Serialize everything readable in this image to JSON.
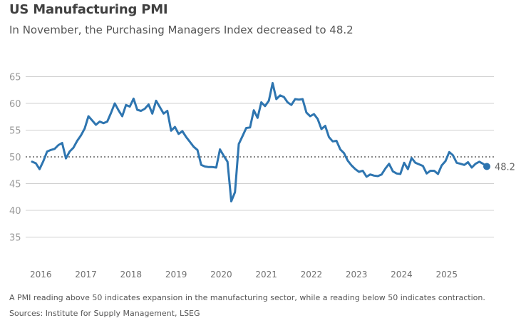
{
  "header": {
    "title": "US Manufacturing PMI",
    "subtitle": "In November, the Purchasing Managers Index decreased to 48.2"
  },
  "footer": {
    "note": "A PMI reading above 50 indicates expansion in the manufacturing sector, while a reading below 50 indicates contraction.",
    "source": "Sources: Institute for Supply Management, LSEG"
  },
  "chart_data": {
    "type": "line",
    "title": "US Manufacturing PMI",
    "subtitle": "In November, the Purchasing Managers Index decreased to 48.2",
    "xlabel": "",
    "ylabel": "",
    "x_start": "2016-01",
    "x_end": "2025-11",
    "frequency": "monthly",
    "ylim": [
      32,
      66
    ],
    "yticks": [
      35,
      40,
      45,
      50,
      55,
      60,
      65
    ],
    "ytick_labels": [
      "35",
      "40",
      "45",
      "50",
      "55",
      "60",
      "65"
    ],
    "xtick_labels": [
      "2016",
      "2017",
      "2018",
      "2019",
      "2020",
      "2021",
      "2022",
      "2023",
      "2024",
      "2025"
    ],
    "grid": true,
    "reference_line": {
      "value": 50,
      "style": "dotted"
    },
    "end_label": "48.2",
    "line_color": "#2e75b0",
    "series": [
      {
        "name": "US Manufacturing PMI",
        "values": [
          49.1,
          48.8,
          47.7,
          49.2,
          51.0,
          51.3,
          51.5,
          52.2,
          52.6,
          49.7,
          51.0,
          51.7,
          53.0,
          54.0,
          55.3,
          57.6,
          56.8,
          56.0,
          56.6,
          56.3,
          56.6,
          58.2,
          60.0,
          58.7,
          57.6,
          59.7,
          59.4,
          60.9,
          58.8,
          58.6,
          59.0,
          59.8,
          58.1,
          60.5,
          59.3,
          58.1,
          58.6,
          54.9,
          55.6,
          54.3,
          54.8,
          53.7,
          52.8,
          51.9,
          51.3,
          48.5,
          48.2,
          48.1,
          48.1,
          48.0,
          51.4,
          50.2,
          49.1,
          41.7,
          43.4,
          52.4,
          53.9,
          55.4,
          55.5,
          58.7,
          57.3,
          60.2,
          59.5,
          60.5,
          63.8,
          60.8,
          61.5,
          61.2,
          60.2,
          59.7,
          60.8,
          60.7,
          60.8,
          58.3,
          57.6,
          58.0,
          57.1,
          55.2,
          55.8,
          53.7,
          52.9,
          53.0,
          51.4,
          50.7,
          49.3,
          48.4,
          47.7,
          47.2,
          47.4,
          46.3,
          46.7,
          46.5,
          46.4,
          46.7,
          47.8,
          48.7,
          47.3,
          46.9,
          46.8,
          48.9,
          47.7,
          49.8,
          48.9,
          48.6,
          48.3,
          46.9,
          47.4,
          47.4,
          46.8,
          48.4,
          49.2,
          50.9,
          50.3,
          48.9,
          48.7,
          48.5,
          49.0,
          48.0,
          48.7,
          49.1,
          48.7,
          48.2
        ]
      }
    ]
  }
}
